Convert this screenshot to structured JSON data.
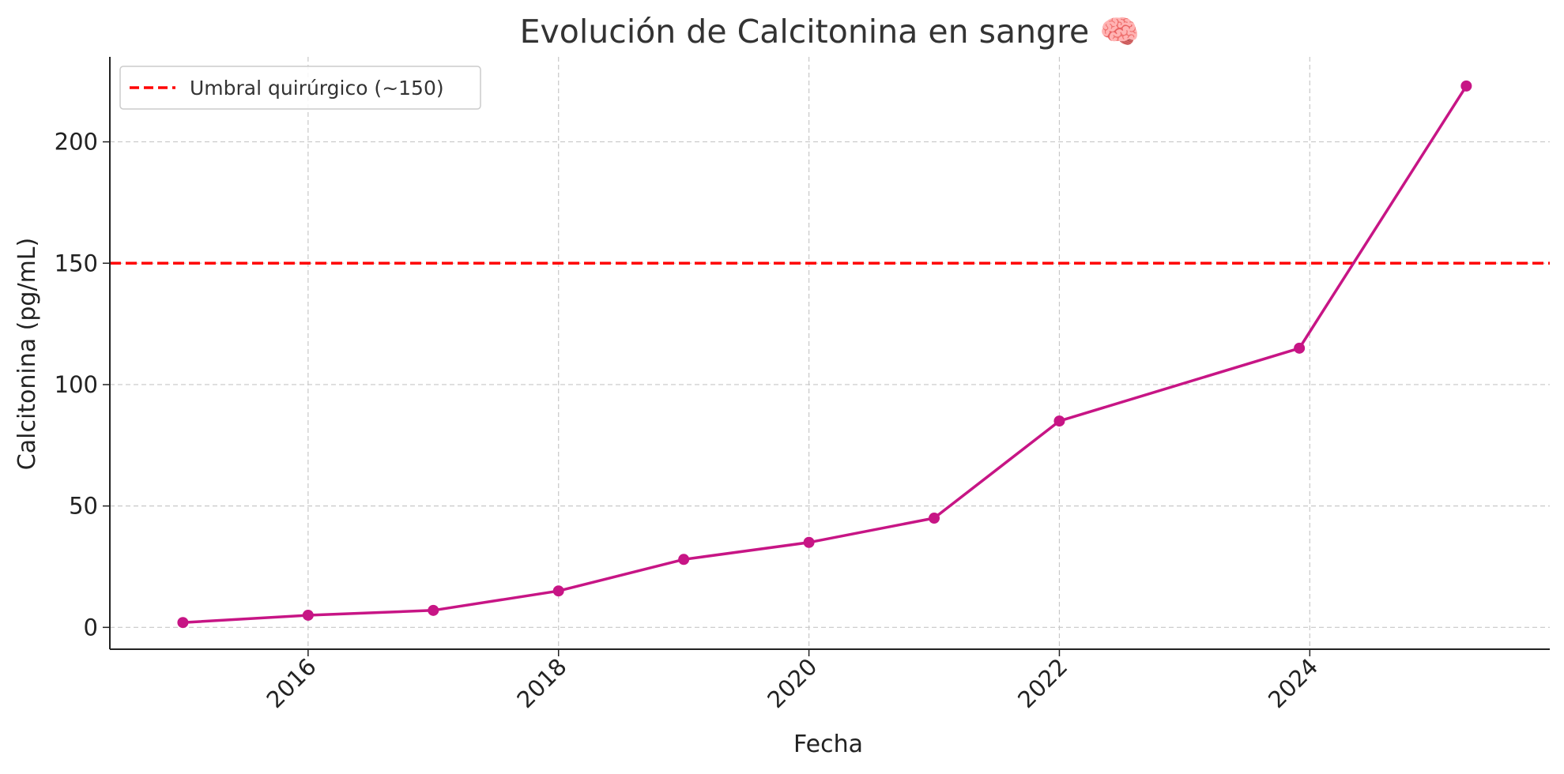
{
  "chart_data": {
    "type": "line",
    "title": "Evolución de Calcitonina en sangre 🧠",
    "xlabel": "Fecha",
    "ylabel": "Calcitonina (pg/mL)",
    "x_ticks": [
      "2016",
      "2018",
      "2020",
      "2022",
      "2024"
    ],
    "y_ticks": [
      "0",
      "50",
      "100",
      "150",
      "200"
    ],
    "xlim": [
      "2014-06",
      "2025-12"
    ],
    "ylim": [
      -9,
      235
    ],
    "grid": true,
    "legend": "top-left",
    "series": [
      {
        "color": "#c71585",
        "points": [
          {
            "x": "2015-01",
            "y": 2
          },
          {
            "x": "2016-01",
            "y": 5
          },
          {
            "x": "2017-01",
            "y": 7
          },
          {
            "x": "2018-01",
            "y": 15
          },
          {
            "x": "2019-01",
            "y": 28
          },
          {
            "x": "2020-01",
            "y": 35
          },
          {
            "x": "2021-01",
            "y": 45
          },
          {
            "x": "2022-01",
            "y": 85
          },
          {
            "x": "2023-12",
            "y": 115
          },
          {
            "x": "2025-04",
            "y": 223
          }
        ]
      }
    ],
    "reference_lines": [
      {
        "label": "Umbral quirúrgico (~150)",
        "y": 150,
        "color": "#ff0000",
        "style": "dashed"
      }
    ]
  }
}
